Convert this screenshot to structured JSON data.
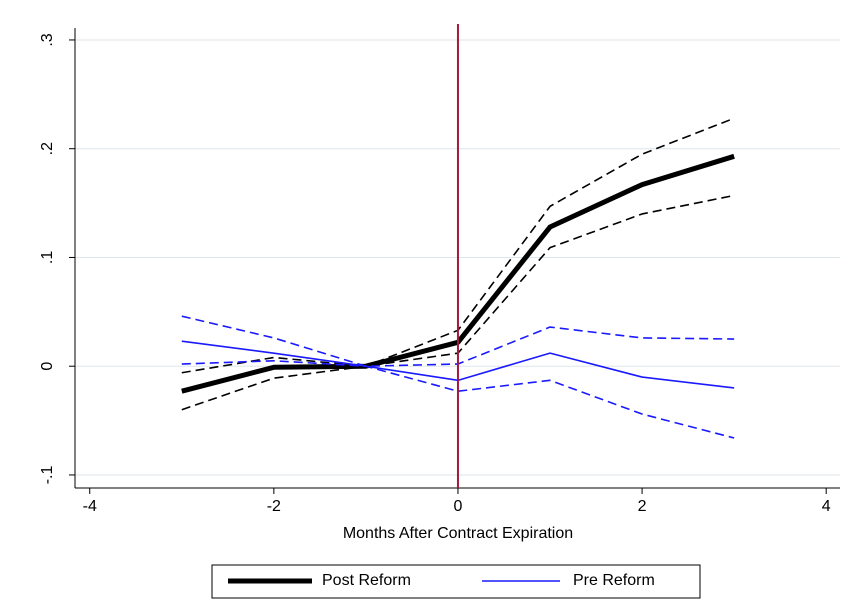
{
  "chart_data": {
    "type": "line",
    "x_label": "Months After Contract Expiration",
    "x": [
      -3,
      -2,
      -1,
      0,
      1,
      2,
      3
    ],
    "series": [
      {
        "name": "Post Reform",
        "color": "#000000",
        "width": 5,
        "dash": false,
        "values": [
          -0.023,
          -0.001,
          0,
          0.022,
          0.128,
          0.167,
          0.193
        ]
      },
      {
        "color": "#000000",
        "width": 1.6,
        "dash": true,
        "values": [
          -0.006,
          0.008,
          0,
          0.033,
          0.147,
          0.195,
          0.228
        ]
      },
      {
        "color": "#000000",
        "width": 1.6,
        "dash": true,
        "values": [
          -0.04,
          -0.011,
          0,
          0.012,
          0.109,
          0.14,
          0.157
        ]
      },
      {
        "name": "Pre Reform",
        "color": "#1a1aff",
        "width": 1.6,
        "dash": false,
        "values": [
          0.023,
          0.012,
          0,
          -0.013,
          0.012,
          -0.01,
          -0.02
        ]
      },
      {
        "color": "#1a1aff",
        "width": 1.6,
        "dash": true,
        "values": [
          0.046,
          0.026,
          0,
          0.002,
          0.036,
          0.026,
          0.025
        ]
      },
      {
        "color": "#1a1aff",
        "width": 1.6,
        "dash": true,
        "values": [
          0.002,
          0.005,
          0,
          -0.023,
          -0.013,
          -0.044,
          -0.066
        ]
      }
    ],
    "xlim": [
      -4.16,
      4.15
    ],
    "xticks": [
      -4,
      -2,
      0,
      2,
      4
    ],
    "ylim": [
      -0.112,
      0.311
    ],
    "yticks": [
      {
        "value": -0.1,
        "label": "-.1"
      },
      {
        "value": 0,
        "label": "0"
      },
      {
        "value": 0.1,
        "label": ".1"
      },
      {
        "value": 0.2,
        "label": ".2"
      },
      {
        "value": 0.3,
        "label": ".3"
      }
    ],
    "grid": true,
    "grid_color": "#dde6ea",
    "vline": 0,
    "vline_color": "#a3183c",
    "legend": "bottom"
  }
}
